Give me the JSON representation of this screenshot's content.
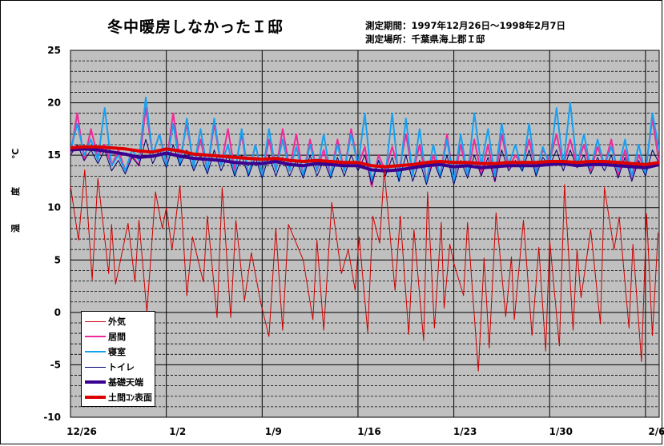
{
  "header": {
    "title": "冬中暖房しなかったＩ邸",
    "period": "測定期間：1997年12月26日～1998年2月7日",
    "location": "測定場所：千葉県海上郡Ｉ邸"
  },
  "chart_data": {
    "type": "line",
    "title": "冬中暖房しなかったＩ邸",
    "ylabel": "温　度　℃",
    "xlabel": "",
    "ylim": [
      -10,
      25
    ],
    "yticks": [
      "25",
      "20",
      "15",
      "10",
      "5",
      "0",
      "-5",
      "-10"
    ],
    "xlim": [
      "1997-12-26T00:00",
      "1998-02-07T00:00"
    ],
    "xticks": [
      {
        "label": "12/26",
        "date": "1997-12-26"
      },
      {
        "label": "1/2",
        "date": "1998-01-02"
      },
      {
        "label": "1/9",
        "date": "1998-01-09"
      },
      {
        "label": "1/16",
        "date": "1998-01-16"
      },
      {
        "label": "1/23",
        "date": "1998-01-23"
      },
      {
        "label": "1/30",
        "date": "1998-01-30"
      },
      {
        "label": "2/6",
        "date": "1998-02-06"
      }
    ],
    "grid": {
      "major_every": 5,
      "minor_every": 1,
      "minor_style": "dashed",
      "vertical": "weekly"
    },
    "background": "#c0c0c0",
    "legend_position": "bottom-left",
    "series": [
      {
        "name": "外気",
        "color": "#cc0000",
        "width": "thin",
        "points": [
          [
            "1997-12-26T00",
            12.1
          ],
          [
            "1997-12-26T14",
            6.9
          ],
          [
            "1997-12-27T01",
            13.6
          ],
          [
            "1997-12-27T14",
            3.1
          ],
          [
            "1997-12-28T00",
            12.8
          ],
          [
            "1997-12-28T19",
            3.7
          ],
          [
            "1997-12-29T00",
            8.4
          ],
          [
            "1997-12-29T07",
            2.7
          ],
          [
            "1997-12-30T05",
            8.5
          ],
          [
            "1997-12-30T17",
            2.9
          ],
          [
            "1997-12-31T00",
            8.8
          ],
          [
            "1997-12-31T14",
            0
          ],
          [
            "1998-01-01T05",
            11.5
          ],
          [
            "1998-01-01T17",
            8.0
          ],
          [
            "1998-01-02T00",
            10.0
          ],
          [
            "1998-01-02T10",
            6.0
          ],
          [
            "1998-01-03T00",
            12.1
          ],
          [
            "1998-01-03T12",
            1.6
          ],
          [
            "1998-01-03T22",
            7.2
          ],
          [
            "1998-01-04T17",
            2.9
          ],
          [
            "1998-01-05T00",
            9.2
          ],
          [
            "1998-01-05T17",
            -0.5
          ],
          [
            "1998-01-06T02",
            11.9
          ],
          [
            "1998-01-06T17",
            -0.5
          ],
          [
            "1998-01-07T02",
            8.8
          ],
          [
            "1998-01-07T17",
            1.1
          ],
          [
            "1998-01-08T05",
            5.7
          ],
          [
            "1998-01-08T22",
            0.8
          ],
          [
            "1998-01-09T12",
            -2.3
          ],
          [
            "1998-01-10T00",
            8.0
          ],
          [
            "1998-01-10T12",
            -1.7
          ],
          [
            "1998-01-10T22",
            8.4
          ],
          [
            "1998-01-12T00",
            5.0
          ],
          [
            "1998-01-12T17",
            -0.7
          ],
          [
            "1998-01-13T00",
            6.9
          ],
          [
            "1998-01-13T12",
            -1.7
          ],
          [
            "1998-01-14T02",
            10.5
          ],
          [
            "1998-01-14T19",
            3.7
          ],
          [
            "1998-01-15T07",
            6.0
          ],
          [
            "1998-01-15T19",
            2.1
          ],
          [
            "1998-01-16T02",
            7.2
          ],
          [
            "1998-01-16T17",
            -1.9
          ],
          [
            "1998-01-17T02",
            9.2
          ],
          [
            "1998-01-17T14",
            6.6
          ],
          [
            "1998-01-17T22",
            13.6
          ],
          [
            "1998-01-18T17",
            2.1
          ],
          [
            "1998-01-19T02",
            9.2
          ],
          [
            "1998-01-19T17",
            -2.1
          ],
          [
            "1998-01-20T02",
            7.9
          ],
          [
            "1998-01-20T19",
            -2.7
          ],
          [
            "1998-01-21T02",
            11.5
          ],
          [
            "1998-01-21T14",
            -1.5
          ],
          [
            "1998-01-22T02",
            8.6
          ],
          [
            "1998-01-22T07",
            0.4
          ],
          [
            "1998-01-22T17",
            6.5
          ],
          [
            "1998-01-23T00",
            4.7
          ],
          [
            "1998-01-23T17",
            1.6
          ],
          [
            "1998-01-24T00",
            8.6
          ],
          [
            "1998-01-24T19",
            -5.6
          ],
          [
            "1998-01-25T05",
            5.2
          ],
          [
            "1998-01-25T14",
            -3.4
          ],
          [
            "1998-01-26T02",
            9.5
          ],
          [
            "1998-01-26T19",
            -0.4
          ],
          [
            "1998-01-27T05",
            5.3
          ],
          [
            "1998-01-27T10",
            -0.7
          ],
          [
            "1998-01-28T02",
            8.8
          ],
          [
            "1998-01-28T17",
            -2.2
          ],
          [
            "1998-01-29T05",
            6.2
          ],
          [
            "1998-01-29T17",
            -3.7
          ],
          [
            "1998-01-30T00",
            6.9
          ],
          [
            "1998-01-30T17",
            -3.2
          ],
          [
            "1998-01-31T02",
            12.2
          ],
          [
            "1998-01-31T17",
            -1.7
          ],
          [
            "1998-02-01T00",
            6.0
          ],
          [
            "1998-02-01T07",
            1.4
          ],
          [
            "1998-02-02T00",
            7.9
          ],
          [
            "1998-02-02T17",
            -1.1
          ],
          [
            "1998-02-03T00",
            11.9
          ],
          [
            "1998-02-03T17",
            6.0
          ],
          [
            "1998-02-04T02",
            9.1
          ],
          [
            "1998-02-04T19",
            -1.5
          ],
          [
            "1998-02-05T02",
            6.5
          ],
          [
            "1998-02-05T17",
            -4.7
          ],
          [
            "1998-02-06T02",
            9.4
          ],
          [
            "1998-02-06T12",
            -2.2
          ],
          [
            "1998-02-06T22",
            7.6
          ]
        ]
      },
      {
        "name": "居間",
        "color": "#ee2a9a",
        "width": "medium",
        "values": [
          15,
          19,
          14.5,
          17.5,
          14.8,
          16,
          14,
          15.5,
          13.5,
          15,
          14,
          19.5,
          15,
          17,
          14.2,
          19,
          14.5,
          18,
          14,
          16.5,
          13.5,
          18,
          14,
          17.5,
          13.5,
          17,
          13,
          16,
          13.2,
          16.5,
          13.5,
          17.5,
          13.8,
          17,
          13,
          16.5,
          13.5,
          15.5,
          13,
          16.5,
          13.5,
          17.5,
          14,
          15.8,
          12,
          15,
          13.5,
          15.8,
          13.5,
          17,
          13.2,
          16,
          12.5,
          15,
          13,
          17,
          12.5,
          16,
          13,
          16.5,
          13.2,
          16,
          12.5,
          17,
          13.8,
          15,
          14,
          16.5,
          13.5,
          15.5,
          14.5,
          17,
          14,
          16.5,
          14,
          16,
          13.5,
          15.8,
          14,
          16.5,
          13,
          15.5,
          12.8,
          15,
          13.5,
          18.5,
          14.2
        ]
      },
      {
        "name": "寝室",
        "color": "#18a0f0",
        "width": "medium",
        "values": [
          15.5,
          18,
          15,
          16.5,
          14.5,
          19.5,
          14,
          15,
          13.5,
          15.5,
          14.5,
          20.5,
          15,
          17,
          14,
          18,
          14,
          18.5,
          13.8,
          17.5,
          13.5,
          18.5,
          14,
          16,
          13,
          17.5,
          13,
          16,
          13,
          17.5,
          13.5,
          16.5,
          13.5,
          15.8,
          13,
          16,
          13.5,
          17,
          13,
          16,
          13.5,
          17,
          14,
          19,
          12.5,
          14.5,
          13,
          19,
          12.5,
          18.5,
          13,
          17.5,
          12.5,
          16,
          13,
          16.5,
          12.5,
          17,
          13,
          19,
          14,
          17.5,
          13,
          18,
          14,
          16,
          13.5,
          18,
          13.2,
          15.8,
          14,
          19.5,
          14,
          20,
          14,
          17,
          13.8,
          16.5,
          14,
          15.8,
          13.5,
          16.5,
          13,
          16,
          13.2,
          19,
          15.5
        ]
      },
      {
        "name": "トイレ",
        "color": "#000070",
        "width": "thin",
        "values": [
          15,
          16,
          14.5,
          15.5,
          14.2,
          15.5,
          13.5,
          14.5,
          13.2,
          14.8,
          14,
          16.5,
          14.2,
          15.5,
          13.8,
          16,
          14,
          15.5,
          13.5,
          15,
          13.2,
          15.5,
          13.5,
          15,
          13,
          15,
          13,
          14.8,
          12.8,
          15,
          13,
          14.8,
          13,
          14.5,
          12.8,
          15,
          13,
          14.5,
          12.8,
          14.8,
          13,
          15,
          13.5,
          15,
          12.2,
          14.5,
          13,
          14.8,
          12.5,
          15,
          12.5,
          14.5,
          12.2,
          14.5,
          12.8,
          15,
          12.2,
          14.5,
          12.8,
          15,
          13,
          14.8,
          12.5,
          15.5,
          13.5,
          14.5,
          13.5,
          15.5,
          13,
          14.8,
          14,
          15.5,
          13.5,
          15.5,
          13.8,
          15,
          13.2,
          14.8,
          13.5,
          15,
          12.8,
          14.8,
          12.5,
          14.5,
          13,
          15.5,
          14.2
        ]
      },
      {
        "name": "基礎天端",
        "color": "#3a0090",
        "width": "thick",
        "values": [
          15.5,
          15.6,
          15.5,
          15.3,
          15.1,
          14.8,
          14.9,
          15.2,
          14.9,
          14.7,
          14.6,
          14.5,
          14.3,
          14.2,
          14.2,
          14.4,
          14.1,
          14.0,
          14.2,
          14.1,
          14.0,
          14.0,
          13.6,
          13.5,
          13.6,
          13.8,
          14.0,
          14.1,
          13.9,
          14.0,
          13.8,
          13.9,
          14.0,
          14.0,
          14.0,
          14.1,
          14.2,
          14.0,
          14.1,
          14.1,
          14.0,
          13.9,
          13.8,
          14.1
        ]
      },
      {
        "name": "土間ｺﾝ表面",
        "color": "#dd0000",
        "width": "thick",
        "values": [
          15.7,
          15.8,
          15.8,
          15.7,
          15.6,
          15.4,
          15.3,
          15.6,
          15.4,
          15.1,
          15.0,
          14.9,
          14.8,
          14.7,
          14.6,
          14.7,
          14.5,
          14.4,
          14.5,
          14.4,
          14.3,
          14.3,
          14.0,
          13.9,
          14.0,
          14.1,
          14.3,
          14.4,
          14.3,
          14.3,
          14.2,
          14.2,
          14.3,
          14.3,
          14.3,
          14.4,
          14.4,
          14.3,
          14.4,
          14.4,
          14.3,
          14.2,
          14.1,
          14.3
        ]
      }
    ]
  }
}
